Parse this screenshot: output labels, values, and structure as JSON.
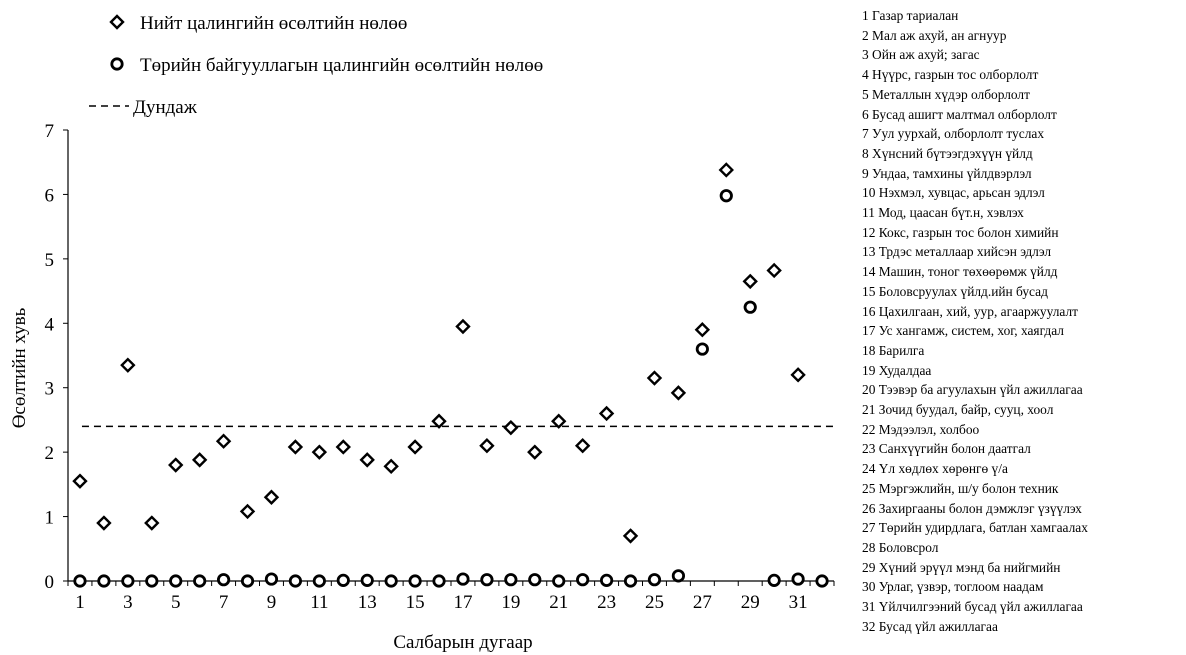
{
  "chart_data": {
    "type": "scatter",
    "xlabel": "Салбарын дугаар",
    "ylabel": "Өсөлтийн хувь",
    "xlim": [
      0.5,
      32.5
    ],
    "ylim": [
      0,
      7
    ],
    "x_ticks": [
      1,
      3,
      5,
      7,
      9,
      11,
      13,
      15,
      17,
      19,
      21,
      23,
      25,
      27,
      29,
      31
    ],
    "y_ticks": [
      0,
      1,
      2,
      3,
      4,
      5,
      6,
      7
    ],
    "grid": false,
    "series": [
      {
        "name": "Нийт цалингийн өсөлтийн нөлөө",
        "marker": "diamond",
        "x": [
          1,
          2,
          3,
          4,
          5,
          6,
          7,
          8,
          9,
          10,
          11,
          12,
          13,
          14,
          15,
          16,
          17,
          18,
          19,
          20,
          21,
          22,
          23,
          24,
          25,
          26,
          27,
          28,
          29,
          30,
          31,
          32
        ],
        "y": [
          1.55,
          0.9,
          3.35,
          0.9,
          1.8,
          1.88,
          2.17,
          1.08,
          1.3,
          2.08,
          2.0,
          2.08,
          1.88,
          1.78,
          2.08,
          2.48,
          3.95,
          2.1,
          2.38,
          2.0,
          2.48,
          2.1,
          2.6,
          0.7,
          3.15,
          2.92,
          3.9,
          6.38,
          4.65,
          4.82,
          3.2,
          0.0
        ]
      },
      {
        "name": "Төрийн байгууллагын цалингийн өсөлтийн нөлөө",
        "marker": "circle",
        "x": [
          1,
          2,
          3,
          4,
          5,
          6,
          7,
          8,
          9,
          10,
          11,
          12,
          13,
          14,
          15,
          16,
          17,
          18,
          19,
          20,
          21,
          22,
          23,
          24,
          25,
          26,
          27,
          28,
          29,
          30,
          31,
          32
        ],
        "y": [
          0,
          0,
          0,
          0,
          0,
          0,
          0.02,
          0,
          0.03,
          0,
          0,
          0.01,
          0.01,
          0,
          0,
          0,
          0.03,
          0.02,
          0.02,
          0.02,
          0,
          0.02,
          0.01,
          0,
          0.02,
          0.08,
          3.6,
          5.98,
          4.25,
          0.01,
          0.03,
          0
        ]
      }
    ],
    "average": {
      "name": "Дундаж",
      "value": 2.4
    },
    "legend": [
      {
        "marker": "diamond",
        "label": "Нийт цалингийн өсөлтийн нөлөө"
      },
      {
        "marker": "circle",
        "label": "Төрийн байгууллагын цалингийн өсөлтийн нөлөө"
      },
      {
        "marker": "dashed-line",
        "label": "Дундаж"
      }
    ],
    "legend_position": "top-left",
    "sector_list_position": "right",
    "sectors": [
      "1 Газар тариалан",
      "2 Мал аж ахуй, ан агнуур",
      "3 Ойн аж ахуй; загас",
      "4 Нүүрс, газрын тос олборлолт",
      "5 Металлын хүдэр олборлолт",
      "6 Бусад ашигт малтмал олборлолт",
      "7 Уул уурхай, олборлолт туслах",
      "8 Хүнсний бүтээгдэхүүн үйлд",
      "9 Ундаа, тамхины үйлдвэрлэл",
      "10 Нэхмэл, хувцас, арьсан эдлэл",
      "11 Мод, цаасан бүт.н, хэвлэх",
      "12 Кокс, газрын тос болон химийн",
      "13 Трдэс металлаар хийсэн эдлэл",
      "14 Машин, тоног төхөөрөмж үйлд",
      "15 Боловсруулах үйлд.ийн бусад",
      "16 Цахилгаан, хий, уур, агааржуулалт",
      "17 Ус хангамж, систем, хог, хаягдал",
      "18 Барилга",
      "19 Худалдаа",
      "20 Тээвэр ба агуулахын үйл ажиллагаа",
      "21 Зочид буудал, байр, сууц, хоол",
      "22 Мэдээлэл, холбоо",
      "23 Санхүүгийн болон даатгал",
      "24 Үл хөдлөх хөрөнгө ү/а",
      "25 Мэргэжлийн, ш/у болон техник",
      "26 Захиргааны болон дэмжлэг үзүүлэх",
      "27 Төрийн удирдлага, батлан хамгаалах",
      "28 Боловсрол",
      "29 Хүний эрүүл мэнд ба нийгмийн",
      "30 Урлаг, үзвэр, тоглоом наадам",
      "31 Үйлчилгээний бусад үйл ажиллагаа",
      "32 Бусад үйл ажиллагаа"
    ]
  }
}
